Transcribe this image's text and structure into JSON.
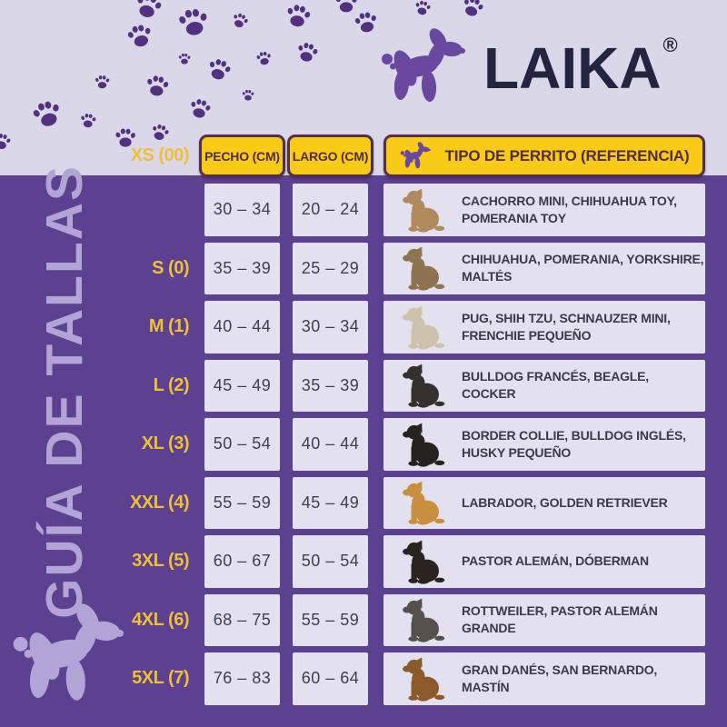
{
  "colors": {
    "bg_lavender": "#dad7e9",
    "panel_purple": "#5b4190",
    "paw_purple": "#533180",
    "tab_yellow": "#f9ca16",
    "tab_dark": "#4f2e4e",
    "label_yellow": "#efc035",
    "cell_bg": "#e3e1ef",
    "cell_text": "#3e3e52",
    "brand_navy": "#232540",
    "logo_purple": "#6a48a0",
    "title_lavender": "#b2a4d4"
  },
  "brand": {
    "name": "LAIKA",
    "registered_mark": "®",
    "logo_icon": "balloon-dog-icon"
  },
  "title": {
    "vertical_text": "GUÍA DE TALLAS"
  },
  "icons": {
    "paw_print": "paw-print-icon",
    "balloon_dog": "balloon-dog-icon"
  },
  "table": {
    "headers": {
      "chest": "PECHO (CM)",
      "length": "LARGO (CM)",
      "reference": "TIPO DE PERRITO (REFERENCIA)"
    },
    "rows": [
      {
        "size": "XS (00)",
        "chest": "30 – 34",
        "length": "20 – 24",
        "breeds": "CACHORRO MINI, CHIHUAHUA TOY, POMERANIA TOY",
        "dog_icon": "chihuahua-toy-photo",
        "dog_color": "#b08a5c"
      },
      {
        "size": "S (0)",
        "chest": "35 – 39",
        "length": "25 – 29",
        "breeds": "CHIHUAHUA, POMERANIA, YORKSHIRE, MALTÉS",
        "dog_icon": "yorkshire-photo",
        "dog_color": "#8d744f"
      },
      {
        "size": "M (1)",
        "chest": "40 – 44",
        "length": "30 – 34",
        "breeds": "PUG, SHIH TZU, SCHNAUZER MINI, FRENCHIE PEQUEÑO",
        "dog_icon": "shih-tzu-photo",
        "dog_color": "#cfc2ab"
      },
      {
        "size": "L (2)",
        "chest": "45 – 49",
        "length": "35 – 39",
        "breeds": "BULLDOG FRANCÉS, BEAGLE, COCKER",
        "dog_icon": "bulldog-frances-photo",
        "dog_color": "#35302e"
      },
      {
        "size": "XL (3)",
        "chest": "50 – 54",
        "length": "40 – 44",
        "breeds": "BORDER COLLIE, BULLDOG INGLÉS, HUSKY PEQUEÑO",
        "dog_icon": "border-collie-photo",
        "dog_color": "#26221f"
      },
      {
        "size": "XXL (4)",
        "chest": "55 – 59",
        "length": "45 – 49",
        "breeds": "LABRADOR, GOLDEN RETRIEVER",
        "dog_icon": "golden-retriever-photo",
        "dog_color": "#c98f3e"
      },
      {
        "size": "3XL (5)",
        "chest": "60 – 67",
        "length": "50 – 54",
        "breeds": "PASTOR ALEMÁN, DÓBERMAN",
        "dog_icon": "doberman-photo",
        "dog_color": "#2a2320"
      },
      {
        "size": "4XL (6)",
        "chest": "68 – 75",
        "length": "55 – 59",
        "breeds": "ROTTWEILER, PASTOR ALEMÁN GRANDE",
        "dog_icon": "rottweiler-photo",
        "dog_color": "#55504c"
      },
      {
        "size": "5XL (7)",
        "chest": "76 – 83",
        "length": "60 – 64",
        "breeds": "GRAN DANÉS, SAN BERNARDO, MASTÍN",
        "dog_icon": "mastin-photo",
        "dog_color": "#8a5a28"
      }
    ]
  }
}
